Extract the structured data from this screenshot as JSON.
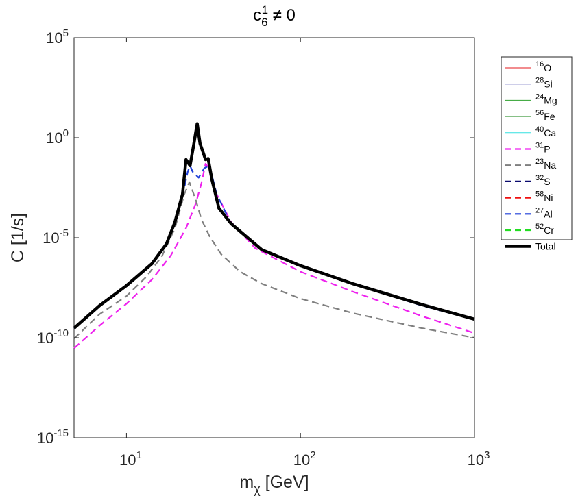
{
  "chart_data": {
    "type": "line",
    "title": {
      "base": "c",
      "sub": "6",
      "sup": "1",
      "rest": " ≠ 0"
    },
    "xlabel": {
      "base": "m",
      "sub": "χ",
      "rest": " [GeV]"
    },
    "ylabel": "C [1/s]",
    "xscale": "log",
    "yscale": "log",
    "xlim": [
      5,
      1000
    ],
    "ylim": [
      1e-15,
      100000
    ],
    "grid": false,
    "legend_position": "outside-right-top",
    "x_ticks": [
      {
        "value": 10,
        "base": "10",
        "exp": "1"
      },
      {
        "value": 100,
        "base": "10",
        "exp": "2"
      },
      {
        "value": 1000,
        "base": "10",
        "exp": "3"
      }
    ],
    "y_ticks": [
      {
        "value": 1e-15,
        "base": "10",
        "exp": "-15"
      },
      {
        "value": 1e-10,
        "base": "10",
        "exp": "-10"
      },
      {
        "value": 1e-05,
        "base": "10",
        "exp": "-5"
      },
      {
        "value": 1,
        "base": "10",
        "exp": "0"
      },
      {
        "value": 100000,
        "base": "10",
        "exp": "5"
      }
    ],
    "series": [
      {
        "name": "16O",
        "mass": "16",
        "element": "O",
        "color": "#e41a1c",
        "style": "solid",
        "width": 1,
        "x": [],
        "y": []
      },
      {
        "name": "28Si",
        "mass": "28",
        "element": "Si",
        "color": "#3a3aa8",
        "style": "solid",
        "width": 1,
        "x": [],
        "y": []
      },
      {
        "name": "24Mg",
        "mass": "24",
        "element": "Mg",
        "color": "#2ca02c",
        "style": "solid",
        "width": 1,
        "x": [],
        "y": []
      },
      {
        "name": "56Fe",
        "mass": "56",
        "element": "Fe",
        "color": "#3f9a3f",
        "style": "solid",
        "width": 1,
        "x": [],
        "y": []
      },
      {
        "name": "40Ca",
        "mass": "40",
        "element": "Ca",
        "color": "#33e0e0",
        "style": "solid",
        "width": 1,
        "x": [],
        "y": []
      },
      {
        "name": "31P",
        "mass": "31",
        "element": "P",
        "color": "#ee22ee",
        "style": "dashed",
        "width": 2.2,
        "x": [
          5,
          7,
          10,
          14,
          18,
          22,
          25,
          27,
          28.5,
          30,
          33,
          40,
          55,
          100,
          200,
          500,
          1000
        ],
        "y": [
          3e-11,
          4e-10,
          5e-09,
          8e-08,
          1.3e-06,
          3e-05,
          0.0005,
          0.0055,
          0.05,
          0.03,
          0.0015,
          6e-05,
          3e-06,
          2e-07,
          2e-08,
          1.2e-09,
          1.7e-10
        ]
      },
      {
        "name": "23Na",
        "mass": "23",
        "element": "Na",
        "color": "#7f7f7f",
        "style": "dashed",
        "width": 2.2,
        "x": [
          5,
          7,
          10,
          13,
          16,
          19,
          21.5,
          23,
          25,
          27,
          30,
          35,
          45,
          60,
          100,
          200,
          500,
          1000
        ],
        "y": [
          9e-11,
          1.5e-09,
          1.2e-08,
          1.1e-07,
          1.2e-06,
          3e-05,
          0.0015,
          0.006,
          0.0008,
          8e-05,
          1.2e-05,
          1.5e-06,
          2e-07,
          5e-08,
          9e-09,
          1.7e-09,
          3e-10,
          1e-10
        ]
      },
      {
        "name": "32S",
        "mass": "32",
        "element": "S",
        "color": "#0a0a6e",
        "style": "dashed",
        "width": 2.2,
        "x": [],
        "y": []
      },
      {
        "name": "58Ni",
        "mass": "58",
        "element": "Ni",
        "color": "#ee1111",
        "style": "dashed",
        "width": 2.2,
        "x": [],
        "y": []
      },
      {
        "name": "27Al",
        "mass": "27",
        "element": "Al",
        "color": "#1f3fd8",
        "style": "dashed",
        "width": 2.2,
        "x": [
          5,
          7,
          10,
          14,
          17,
          19,
          21,
          22.5,
          23.2,
          24,
          26,
          28,
          30,
          33,
          40,
          60,
          100,
          200,
          500,
          1000
        ],
        "y": [
          3e-10,
          4e-09,
          4e-08,
          5e-07,
          5e-06,
          6e-05,
          0.0012,
          0.02,
          0.04,
          0.02,
          0.01,
          0.03,
          0.04,
          0.0015,
          5e-05,
          2.5e-06,
          4e-07,
          5e-08,
          4e-09,
          8e-10
        ]
      },
      {
        "name": "52Cr",
        "mass": "52",
        "element": "Cr",
        "color": "#22dd22",
        "style": "dashed",
        "width": 2.2,
        "x": [],
        "y": []
      },
      {
        "name": "Total",
        "mass": "",
        "element": "Total",
        "color": "#000000",
        "style": "solid",
        "width": 4.5,
        "x": [
          5,
          7,
          10,
          14,
          17,
          19,
          21,
          22,
          23.2,
          24.3,
          25.5,
          26.5,
          27.5,
          28.5,
          29.5,
          31,
          34,
          40,
          60,
          100,
          200,
          500,
          1000
        ],
        "y": [
          3e-10,
          4e-09,
          4e-08,
          5e-07,
          5e-06,
          6e-05,
          0.0015,
          0.08,
          0.04,
          0.4,
          5,
          0.5,
          0.2,
          0.08,
          0.09,
          0.008,
          0.0003,
          5e-05,
          2.5e-06,
          4e-07,
          5e-08,
          4.5e-09,
          8.5e-10
        ]
      }
    ]
  }
}
